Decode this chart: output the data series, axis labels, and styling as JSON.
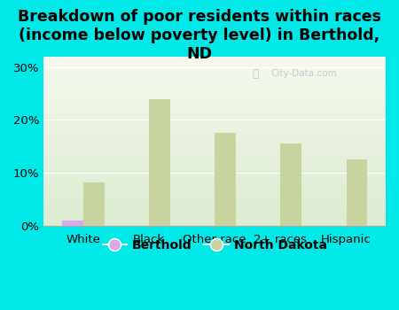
{
  "title": "Breakdown of poor residents within races\n(income below poverty level) in Berthold,\nND",
  "categories": [
    "White",
    "Black",
    "Other race",
    "2+ races",
    "Hispanic"
  ],
  "berthold_values": [
    1.0,
    0,
    0,
    0,
    0
  ],
  "nd_values": [
    8.2,
    24.0,
    17.5,
    15.5,
    12.5
  ],
  "berthold_color": "#d8a8e8",
  "nd_color": "#c8d4a0",
  "background_color": "#00e8e8",
  "plot_bg_top": "#f5f8ee",
  "plot_bg_bottom": "#dcecd0",
  "bar_width": 0.32,
  "ylim": [
    0,
    32
  ],
  "yticks": [
    0,
    10,
    20,
    30
  ],
  "ytick_labels": [
    "0%",
    "10%",
    "20%",
    "30%"
  ],
  "title_fontsize": 12.5,
  "tick_fontsize": 9.5,
  "legend_fontsize": 10,
  "watermark": "City-Data.com"
}
